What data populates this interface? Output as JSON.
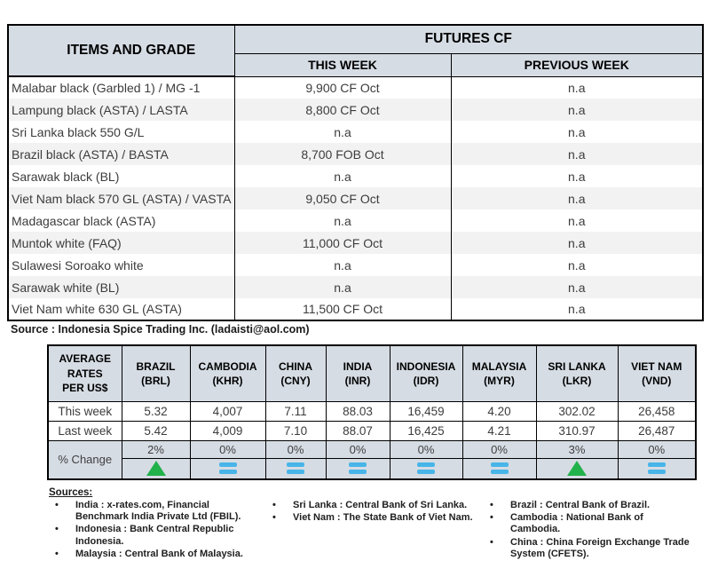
{
  "futures_table": {
    "header": {
      "items_col": "ITEMS AND GRADE",
      "group": "FUTURES CF",
      "this_week": "THIS WEEK",
      "previous_week": "PREVIOUS WEEK"
    },
    "rows": [
      {
        "item": "Malabar black (Garbled 1) / MG -1",
        "this_week": "9,900 CF Oct",
        "previous_week": "n.a"
      },
      {
        "item": "Lampung black (ASTA) / LASTA",
        "this_week": "8,800 CF Oct",
        "previous_week": "n.a"
      },
      {
        "item": "Sri Lanka black 550 G/L",
        "this_week": "n.a",
        "previous_week": "n.a"
      },
      {
        "item": "Brazil black (ASTA) / BASTA",
        "this_week": "8,700 FOB Oct",
        "previous_week": "n.a"
      },
      {
        "item": "Sarawak black (BL)",
        "this_week": "n.a",
        "previous_week": "n.a"
      },
      {
        "item": "Viet Nam black 570 GL (ASTA) / VASTA",
        "this_week": "9,050 CF Oct",
        "previous_week": "n.a"
      },
      {
        "item": "Madagascar black (ASTA)",
        "this_week": "n.a",
        "previous_week": "n.a"
      },
      {
        "item": "Muntok white (FAQ)",
        "this_week": "11,000 CF Oct",
        "previous_week": "n.a"
      },
      {
        "item": "Sulawesi Soroako white",
        "this_week": "n.a",
        "previous_week": "n.a"
      },
      {
        "item": "Sarawak  white (BL)",
        "this_week": "n.a",
        "previous_week": "n.a"
      },
      {
        "item": "Viet Nam white 630 GL (ASTA)",
        "this_week": "11,500 CF Oct",
        "previous_week": "n.a"
      }
    ],
    "source": "Source : Indonesia Spice Trading Inc. (ladaisti@aol.com)"
  },
  "rates_table": {
    "corner_label": "AVERAGE\nRATES\nPER US$",
    "row_labels": {
      "this_week": "This week",
      "last_week": "Last week",
      "pct_change": "% Change"
    },
    "columns": [
      {
        "country": "BRAZIL",
        "code": "(BRL)",
        "this_week": "5.32",
        "last_week": "5.42",
        "pct": "2%",
        "trend": "up"
      },
      {
        "country": "CAMBODIA",
        "code": "(KHR)",
        "this_week": "4,007",
        "last_week": "4,009",
        "pct": "0%",
        "trend": "flat"
      },
      {
        "country": "CHINA",
        "code": "(CNY)",
        "this_week": "7.11",
        "last_week": "7.10",
        "pct": "0%",
        "trend": "flat"
      },
      {
        "country": "INDIA",
        "code": "(INR)",
        "this_week": "88.03",
        "last_week": "88.07",
        "pct": "0%",
        "trend": "flat"
      },
      {
        "country": "INDONESIA",
        "code": "(IDR)",
        "this_week": "16,459",
        "last_week": "16,425",
        "pct": "0%",
        "trend": "flat"
      },
      {
        "country": "MALAYSIA",
        "code": "(MYR)",
        "this_week": "4.20",
        "last_week": "4.21",
        "pct": "0%",
        "trend": "flat"
      },
      {
        "country": "SRI LANKA",
        "code": "(LKR)",
        "this_week": "302.02",
        "last_week": "310.97",
        "pct": "3%",
        "trend": "up"
      },
      {
        "country": "VIET NAM",
        "code": "(VND)",
        "this_week": "26,458",
        "last_week": "26,487",
        "pct": "0%",
        "trend": "flat"
      }
    ]
  },
  "sources_section": {
    "title": "Sources:",
    "columns": [
      {
        "items": [
          "India : x-rates.com, Financial Benchmark India Private Ltd (FBIL).",
          "Indonesia : Bank Central Republic Indonesia.",
          "Malaysia : Central Bank of Malaysia."
        ]
      },
      {
        "items": [
          "Sri Lanka : Central Bank of Sri Lanka.",
          "Viet Nam : The State Bank of Viet Nam."
        ]
      },
      {
        "items": [
          "Brazil :  Central Bank of Brazil.",
          "Cambodia : National Bank of Cambodia.",
          "China : China Foreign Exchange Trade System (CFETS)."
        ]
      }
    ]
  },
  "colors": {
    "header_bg": "#d6dce4",
    "row_stripe": "#f2f2f2",
    "up_green": "#21b24c",
    "no_change_blue": "#47b5e8"
  }
}
